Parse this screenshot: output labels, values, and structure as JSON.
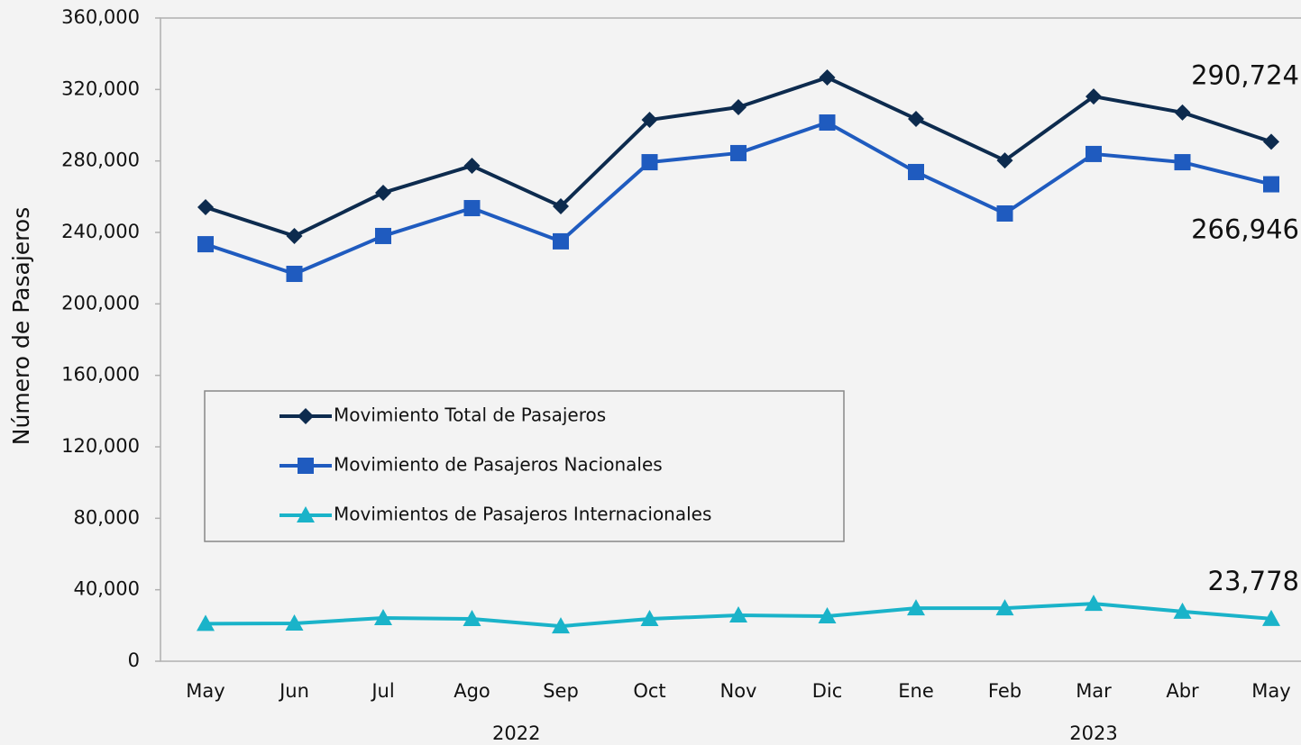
{
  "chart_data": {
    "type": "line",
    "y_label": "Número de Pasajeros",
    "categories": [
      "May",
      "Jun",
      "Jul",
      "Ago",
      "Sep",
      "Oct",
      "Nov",
      "Dic",
      "Ene",
      "Feb",
      "Mar",
      "Abr",
      "May"
    ],
    "x_groups": [
      {
        "label": "2022",
        "span": 8
      },
      {
        "label": "2023",
        "span": 5
      }
    ],
    "series": [
      {
        "name": "Movimiento Total de Pasajeros",
        "color": "#0d2b4e",
        "marker": "diamond",
        "values": [
          254100,
          238000,
          262200,
          277300,
          254600,
          303000,
          310100,
          326700,
          303500,
          280300,
          316100,
          307100,
          290724
        ],
        "value_labels": [
          null,
          null,
          null,
          null,
          null,
          null,
          null,
          null,
          null,
          null,
          null,
          null,
          "290,724"
        ]
      },
      {
        "name": "Movimiento de Pasajeros Nacionales",
        "color": "#1f5bbf",
        "marker": "square",
        "values": [
          233400,
          216800,
          238000,
          253600,
          235000,
          279300,
          284400,
          301500,
          273800,
          250600,
          283900,
          279300,
          266946
        ],
        "value_labels": [
          null,
          null,
          null,
          null,
          null,
          null,
          null,
          null,
          null,
          null,
          null,
          null,
          "266,946"
        ]
      },
      {
        "name": "Movimientos de Pasajeros Internacionales",
        "color": "#1ab3c9",
        "marker": "triangle",
        "values": [
          21000,
          21200,
          24200,
          23700,
          19600,
          23700,
          25700,
          25200,
          29700,
          29700,
          32200,
          27800,
          23778
        ],
        "value_labels": [
          null,
          null,
          null,
          null,
          null,
          null,
          null,
          null,
          null,
          null,
          null,
          null,
          "23,778"
        ]
      }
    ],
    "ylim": [
      0,
      360000
    ],
    "yticks": [
      0,
      {
        "value": 40000,
        "label": "40,000"
      },
      {
        "value": 80000,
        "label": "80,000"
      },
      {
        "value": 120000,
        "label": "120,000"
      },
      {
        "value": 160000,
        "label": "160,000"
      },
      {
        "value": 200000,
        "label": "200,000"
      },
      {
        "value": 240000,
        "label": "240,000"
      },
      {
        "value": 280000,
        "label": "280,000"
      },
      {
        "value": 320000,
        "label": "320,000"
      },
      {
        "value": 360000,
        "label": "360,000"
      }
    ],
    "legend": "lower left",
    "grid": false
  }
}
